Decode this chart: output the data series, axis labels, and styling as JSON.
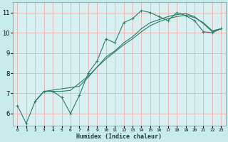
{
  "title": "",
  "xlabel": "Humidex (Indice chaleur)",
  "ylabel": "",
  "bg_color": "#c8ecec",
  "plot_bg_color": "#d8f0f0",
  "grid_color": "#e8b0b0",
  "line_color": "#2a7a6a",
  "xlim": [
    -0.5,
    23.5
  ],
  "ylim": [
    5.4,
    11.5
  ],
  "xticks": [
    0,
    1,
    2,
    3,
    4,
    5,
    6,
    7,
    8,
    9,
    10,
    11,
    12,
    13,
    14,
    15,
    16,
    17,
    18,
    19,
    20,
    21,
    22,
    23
  ],
  "yticks": [
    6,
    7,
    8,
    9,
    10,
    11
  ],
  "line1_x": [
    0,
    1,
    2,
    3,
    4,
    5,
    6,
    7,
    8,
    9,
    10,
    11,
    12,
    13,
    14,
    15,
    16,
    17,
    18,
    19,
    20,
    21,
    22,
    23
  ],
  "line1_y": [
    6.4,
    5.5,
    6.6,
    7.1,
    7.1,
    6.8,
    6.0,
    6.9,
    8.0,
    8.6,
    9.7,
    9.5,
    10.5,
    10.7,
    11.1,
    11.0,
    10.8,
    10.6,
    11.0,
    10.85,
    10.6,
    10.05,
    10.0,
    10.2
  ],
  "line2_x": [
    2,
    3,
    4,
    5,
    6,
    7,
    8,
    9,
    10,
    11,
    12,
    13,
    14,
    15,
    16,
    17,
    18,
    19,
    20,
    21,
    22,
    23
  ],
  "line2_y": [
    6.6,
    7.1,
    7.1,
    7.1,
    7.15,
    7.5,
    7.85,
    8.3,
    8.8,
    9.1,
    9.5,
    9.8,
    10.2,
    10.5,
    10.65,
    10.8,
    10.9,
    10.95,
    10.8,
    10.45,
    10.05,
    10.2
  ],
  "line3_x": [
    2,
    3,
    7,
    8,
    9,
    10,
    11,
    12,
    13,
    14,
    15,
    16,
    17,
    18,
    19,
    20,
    21,
    22,
    23
  ],
  "line3_y": [
    6.6,
    7.1,
    7.35,
    7.8,
    8.3,
    8.7,
    9.05,
    9.4,
    9.7,
    10.05,
    10.35,
    10.55,
    10.7,
    10.8,
    10.87,
    10.75,
    10.5,
    10.1,
    10.2
  ]
}
